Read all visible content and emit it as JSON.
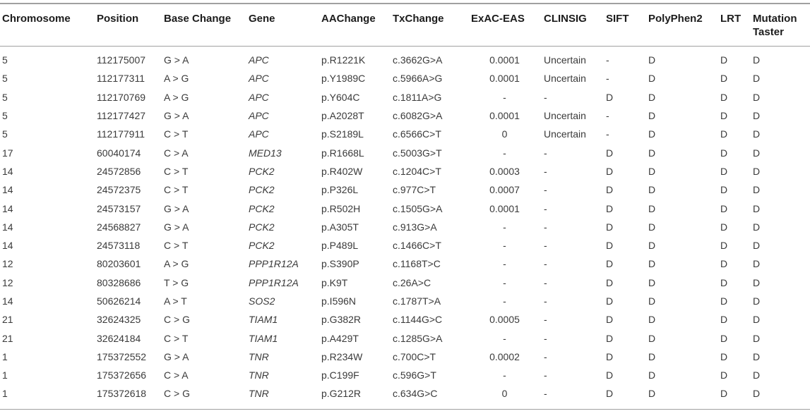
{
  "table": {
    "columns": [
      {
        "key": "chromosome",
        "label": "Chromosome",
        "align": "left"
      },
      {
        "key": "position",
        "label": "Position",
        "align": "left"
      },
      {
        "key": "base-change",
        "label": "Base Change",
        "align": "left"
      },
      {
        "key": "gene",
        "label": "Gene",
        "align": "left",
        "italic": true
      },
      {
        "key": "aachange",
        "label": "AAChange",
        "align": "left"
      },
      {
        "key": "txchange",
        "label": "TxChange",
        "align": "left"
      },
      {
        "key": "exac-eas",
        "label": "ExAC-EAS",
        "align": "center_values"
      },
      {
        "key": "clinsig",
        "label": "CLINSIG",
        "align": "left"
      },
      {
        "key": "sift",
        "label": "SIFT",
        "align": "left"
      },
      {
        "key": "polyphen2",
        "label": "PolyPhen2",
        "align": "left"
      },
      {
        "key": "lrt",
        "label": "LRT",
        "align": "left"
      },
      {
        "key": "mutation-taster",
        "label": "Mutation Taster",
        "align": "left"
      }
    ],
    "rows": [
      [
        "5",
        "112175007",
        "G > A",
        "APC",
        "p.R1221K",
        "c.3662G>A",
        "0.0001",
        "Uncertain",
        "-",
        "D",
        "D",
        "D"
      ],
      [
        "5",
        "112177311",
        "A > G",
        "APC",
        "p.Y1989C",
        "c.5966A>G",
        "0.0001",
        "Uncertain",
        "-",
        "D",
        "D",
        "D"
      ],
      [
        "5",
        "112170769",
        "A > G",
        "APC",
        "p.Y604C",
        "c.1811A>G",
        "-",
        "-",
        "D",
        "D",
        "D",
        "D"
      ],
      [
        "5",
        "112177427",
        "G > A",
        "APC",
        "p.A2028T",
        "c.6082G>A",
        "0.0001",
        "Uncertain",
        "-",
        "D",
        "D",
        "D"
      ],
      [
        "5",
        "112177911",
        "C > T",
        "APC",
        "p.S2189L",
        "c.6566C>T",
        "0",
        "Uncertain",
        "-",
        "D",
        "D",
        "D"
      ],
      [
        "17",
        "60040174",
        "C > A",
        "MED13",
        "p.R1668L",
        "c.5003G>T",
        "-",
        "-",
        "D",
        "D",
        "D",
        "D"
      ],
      [
        "14",
        "24572856",
        "C > T",
        "PCK2",
        "p.R402W",
        "c.1204C>T",
        "0.0003",
        "-",
        "D",
        "D",
        "D",
        "D"
      ],
      [
        "14",
        "24572375",
        "C > T",
        "PCK2",
        "p.P326L",
        "c.977C>T",
        "0.0007",
        "-",
        "D",
        "D",
        "D",
        "D"
      ],
      [
        "14",
        "24573157",
        "G > A",
        "PCK2",
        "p.R502H",
        "c.1505G>A",
        "0.0001",
        "-",
        "D",
        "D",
        "D",
        "D"
      ],
      [
        "14",
        "24568827",
        "G > A",
        "PCK2",
        "p.A305T",
        "c.913G>A",
        "-",
        "-",
        "D",
        "D",
        "D",
        "D"
      ],
      [
        "14",
        "24573118",
        "C > T",
        "PCK2",
        "p.P489L",
        "c.1466C>T",
        "-",
        "-",
        "D",
        "D",
        "D",
        "D"
      ],
      [
        "12",
        "80203601",
        "A > G",
        "PPP1R12A",
        "p.S390P",
        "c.1168T>C",
        "-",
        "-",
        "D",
        "D",
        "D",
        "D"
      ],
      [
        "12",
        "80328686",
        "T > G",
        "PPP1R12A",
        "p.K9T",
        "c.26A>C",
        "-",
        "-",
        "D",
        "D",
        "D",
        "D"
      ],
      [
        "14",
        "50626214",
        "A > T",
        "SOS2",
        "p.I596N",
        "c.1787T>A",
        "-",
        "-",
        "D",
        "D",
        "D",
        "D"
      ],
      [
        "21",
        "32624325",
        "C > G",
        "TIAM1",
        "p.G382R",
        "c.1144G>C",
        "0.0005",
        "-",
        "D",
        "D",
        "D",
        "D"
      ],
      [
        "21",
        "32624184",
        "C > T",
        "TIAM1",
        "p.A429T",
        "c.1285G>A",
        "-",
        "-",
        "D",
        "D",
        "D",
        "D"
      ],
      [
        "1",
        "175372552",
        "G > A",
        "TNR",
        "p.R234W",
        "c.700C>T",
        "0.0002",
        "-",
        "D",
        "D",
        "D",
        "D"
      ],
      [
        "1",
        "175372656",
        "C > A",
        "TNR",
        "p.C199F",
        "c.596G>T",
        "-",
        "-",
        "D",
        "D",
        "D",
        "D"
      ],
      [
        "1",
        "175372618",
        "C > G",
        "TNR",
        "p.G212R",
        "c.634G>C",
        "0",
        "-",
        "D",
        "D",
        "D",
        "D"
      ]
    ]
  }
}
